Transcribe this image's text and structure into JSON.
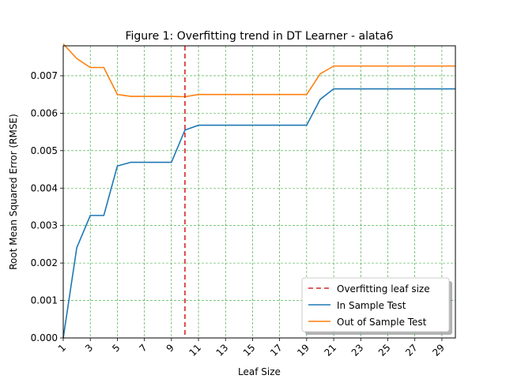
{
  "chart_data": {
    "type": "line",
    "title": "Figure 1: Overfitting trend in DT Learner - alata6",
    "xlabel": "Leaf Size",
    "ylabel": "Root Mean Squared Error (RMSE)",
    "xlim": [
      1,
      30
    ],
    "ylim": [
      0,
      0.0078
    ],
    "xticks": [
      1,
      3,
      5,
      7,
      9,
      11,
      13,
      15,
      17,
      19,
      21,
      23,
      25,
      27,
      29
    ],
    "yticks": [
      0.0,
      0.001,
      0.002,
      0.003,
      0.004,
      0.005,
      0.006,
      0.007
    ],
    "ytick_labels": [
      "0.000",
      "0.001",
      "0.002",
      "0.003",
      "0.004",
      "0.005",
      "0.006",
      "0.007"
    ],
    "grid": true,
    "legend_position": "lower-right",
    "overfit_line": {
      "x": 10,
      "label": "Overfitting leaf size",
      "color": "#d62728"
    },
    "x": [
      1,
      2,
      3,
      4,
      5,
      6,
      7,
      8,
      9,
      10,
      11,
      12,
      13,
      14,
      15,
      16,
      17,
      18,
      19,
      20,
      21,
      22,
      23,
      24,
      25,
      26,
      27,
      28,
      29,
      30
    ],
    "series": [
      {
        "name": "In Sample Test",
        "color": "#1f77b4",
        "values": [
          0.0,
          0.00241,
          0.00327,
          0.00327,
          0.00459,
          0.00469,
          0.00469,
          0.00469,
          0.00469,
          0.00555,
          0.00568,
          0.00568,
          0.00568,
          0.00568,
          0.00568,
          0.00568,
          0.00568,
          0.00568,
          0.00568,
          0.00637,
          0.00665,
          0.00665,
          0.00665,
          0.00665,
          0.00665,
          0.00665,
          0.00665,
          0.00665,
          0.00665,
          0.00665
        ]
      },
      {
        "name": "Out of Sample Test",
        "color": "#ff7f0e",
        "values": [
          0.00785,
          0.00746,
          0.00722,
          0.00722,
          0.0065,
          0.00645,
          0.00645,
          0.00645,
          0.00645,
          0.00644,
          0.0065,
          0.0065,
          0.0065,
          0.0065,
          0.0065,
          0.0065,
          0.0065,
          0.0065,
          0.0065,
          0.00705,
          0.00726,
          0.00726,
          0.00726,
          0.00726,
          0.00726,
          0.00726,
          0.00726,
          0.00726,
          0.00726,
          0.00726
        ]
      }
    ]
  }
}
